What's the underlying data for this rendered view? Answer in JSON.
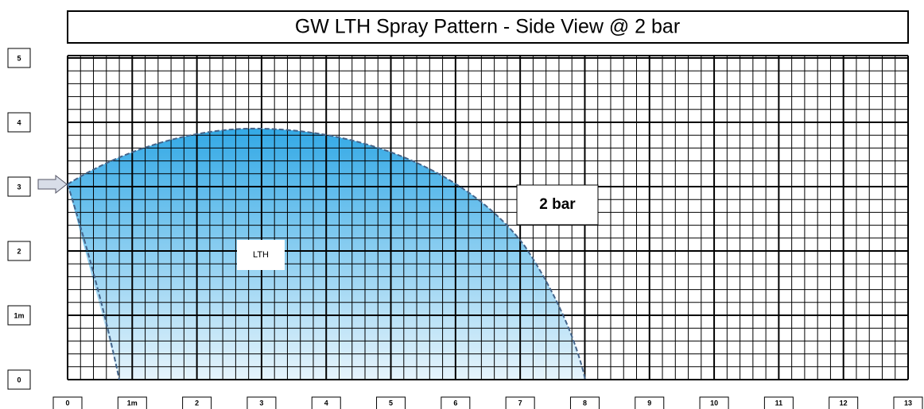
{
  "title": "GW LTH Spray Pattern - Side View @ 2 bar",
  "y_labels": [
    "0",
    "1m",
    "2",
    "3",
    "4",
    "5"
  ],
  "x_labels": [
    "0",
    "1m",
    "2",
    "3",
    "4",
    "5",
    "6",
    "7",
    "8",
    "9",
    "10",
    "11",
    "12",
    "13"
  ],
  "annotations": {
    "pressure": "2 bar",
    "model": "LTH"
  }
}
